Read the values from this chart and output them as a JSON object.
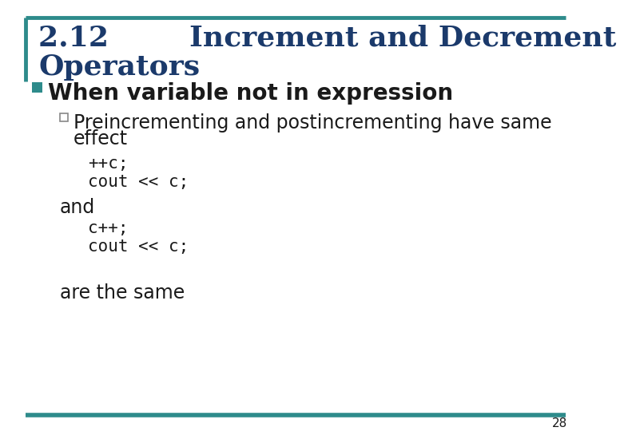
{
  "title_line1": "2.12        Increment and Decrement",
  "title_line2": "Operators",
  "title_color": "#1B3A6B",
  "bullet1_square_color": "#2E8B8B",
  "bullet2_square_color": "#888888",
  "background_color": "#FFFFFF",
  "border_color": "#2E8B8B",
  "bullet1_text": "When variable not in expression",
  "sub_bullet_text1": "Preincrementing and postincrementing have same",
  "sub_bullet_text2": "effect",
  "code1_line1": "++c;",
  "code1_line2": "cout << c;",
  "and_text": "and",
  "code2_line1": "c++;",
  "code2_line2": "cout << c;",
  "footer_text": "are the same",
  "page_number": "28",
  "title_fontsize": 26,
  "bullet1_fontsize": 20,
  "sub_bullet_fontsize": 17,
  "code_fontsize": 15,
  "footer_fontsize": 17
}
